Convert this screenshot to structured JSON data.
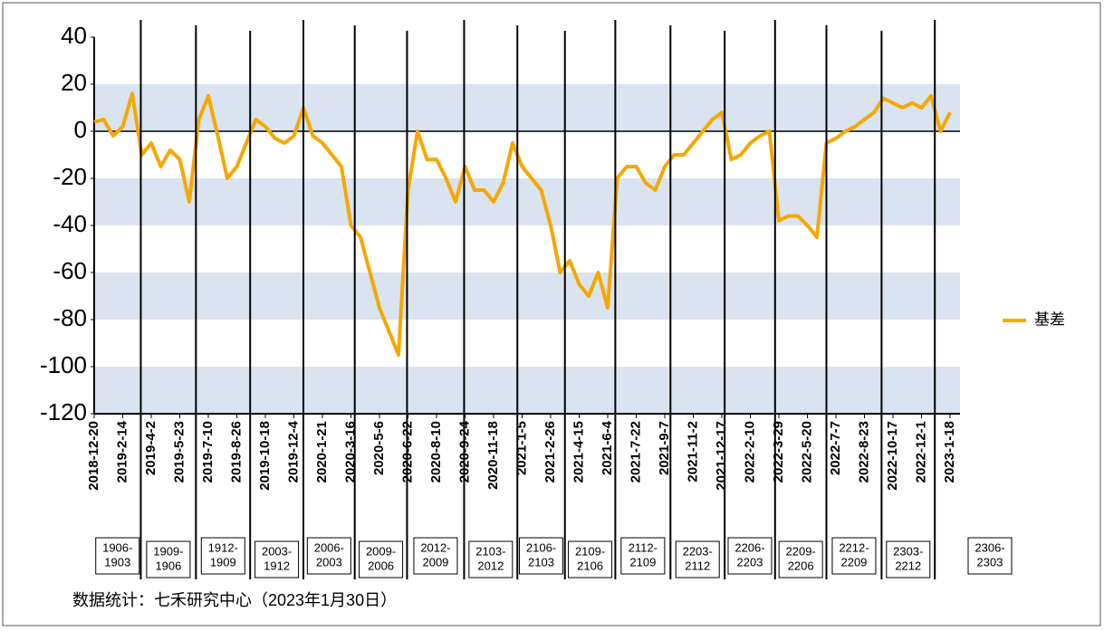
{
  "chart_data": {
    "type": "line",
    "categories": [
      "2018-12-20",
      null,
      null,
      "2019-2-14",
      null,
      null,
      "2019-4-2",
      null,
      null,
      "2019-5-23",
      null,
      null,
      "2019-7-10",
      null,
      null,
      "2019-8-26",
      null,
      null,
      "2019-10-18",
      null,
      null,
      "2019-12-4",
      null,
      null,
      "2020-1-21",
      null,
      null,
      "2020-3-16",
      null,
      null,
      "2020-5-6",
      null,
      null,
      "2020-6-22",
      null,
      null,
      "2020-8-10",
      null,
      null,
      "2020-9-24",
      null,
      null,
      "2020-11-18",
      null,
      null,
      "2021-1-5",
      null,
      null,
      "2021-2-26",
      null,
      null,
      "2021-4-15",
      null,
      null,
      "2021-6-4",
      null,
      null,
      "2021-7-22",
      null,
      null,
      "2021-9-7",
      null,
      null,
      "2021-11-2",
      null,
      null,
      "2021-12-17",
      null,
      null,
      "2022-2-10",
      null,
      null,
      "2022-3-29",
      null,
      null,
      "2022-5-20",
      null,
      null,
      "2022-7-7",
      null,
      null,
      "2022-8-23",
      null,
      null,
      "2022-10-17",
      null,
      null,
      "2022-12-1",
      null,
      null,
      "2023-1-18"
    ],
    "series": [
      {
        "name": "基差",
        "color": "#f5a800",
        "values": [
          4,
          5,
          -2,
          2,
          16,
          -10,
          -5,
          -15,
          -8,
          -12,
          -30,
          5,
          15,
          -2,
          -20,
          -15,
          -5,
          5,
          2,
          -3,
          -5,
          -2,
          10,
          -2,
          -5,
          -10,
          -15,
          -40,
          -45,
          -60,
          -75,
          -85,
          -95,
          -25,
          0,
          -12,
          -12,
          -20,
          -30,
          -15,
          -25,
          -25,
          -30,
          -22,
          -5,
          -15,
          -20,
          -25,
          -40,
          -60,
          -55,
          -65,
          -70,
          -60,
          -75,
          -20,
          -15,
          -15,
          -22,
          -25,
          -15,
          -10,
          -10,
          -5,
          0,
          5,
          8,
          -12,
          -10,
          -5,
          -2,
          0,
          -38,
          -36,
          -36,
          -40,
          -45,
          -5,
          -3,
          0,
          2,
          5,
          8,
          14,
          12,
          10,
          12,
          10,
          15,
          0,
          8
        ]
      }
    ],
    "ylim": [
      -120,
      40
    ],
    "yticks": [
      -120,
      -100,
      -80,
      -60,
      -40,
      -20,
      0,
      20,
      40
    ],
    "bands": true,
    "switch_x": [
      4.9,
      10.7,
      16.4,
      22,
      27.4,
      32.9,
      38.9,
      44.5,
      49.5,
      54.8,
      60.6,
      66.3,
      71.6,
      77,
      82.8,
      88.4
    ],
    "contracts": [
      [
        "1906-",
        "1903"
      ],
      [
        "1909-",
        "1906"
      ],
      [
        "1912-",
        "1909"
      ],
      [
        "2003-",
        "1912"
      ],
      [
        "2006-",
        "2003"
      ],
      [
        "2009-",
        "2006"
      ],
      [
        "2012-",
        "2009"
      ],
      [
        "2103-",
        "2012"
      ],
      [
        "2106-",
        "2103"
      ],
      [
        "2109-",
        "2106"
      ],
      [
        "2112-",
        "2109"
      ],
      [
        "2203-",
        "2112"
      ],
      [
        "2206-",
        "2203"
      ],
      [
        "2209-",
        "2206"
      ],
      [
        "2212-",
        "2209"
      ],
      [
        "2303-",
        "2212"
      ],
      [
        "2306-",
        "2303"
      ]
    ],
    "source": "数据统计：七禾研究中心（2023年1月30日）"
  }
}
